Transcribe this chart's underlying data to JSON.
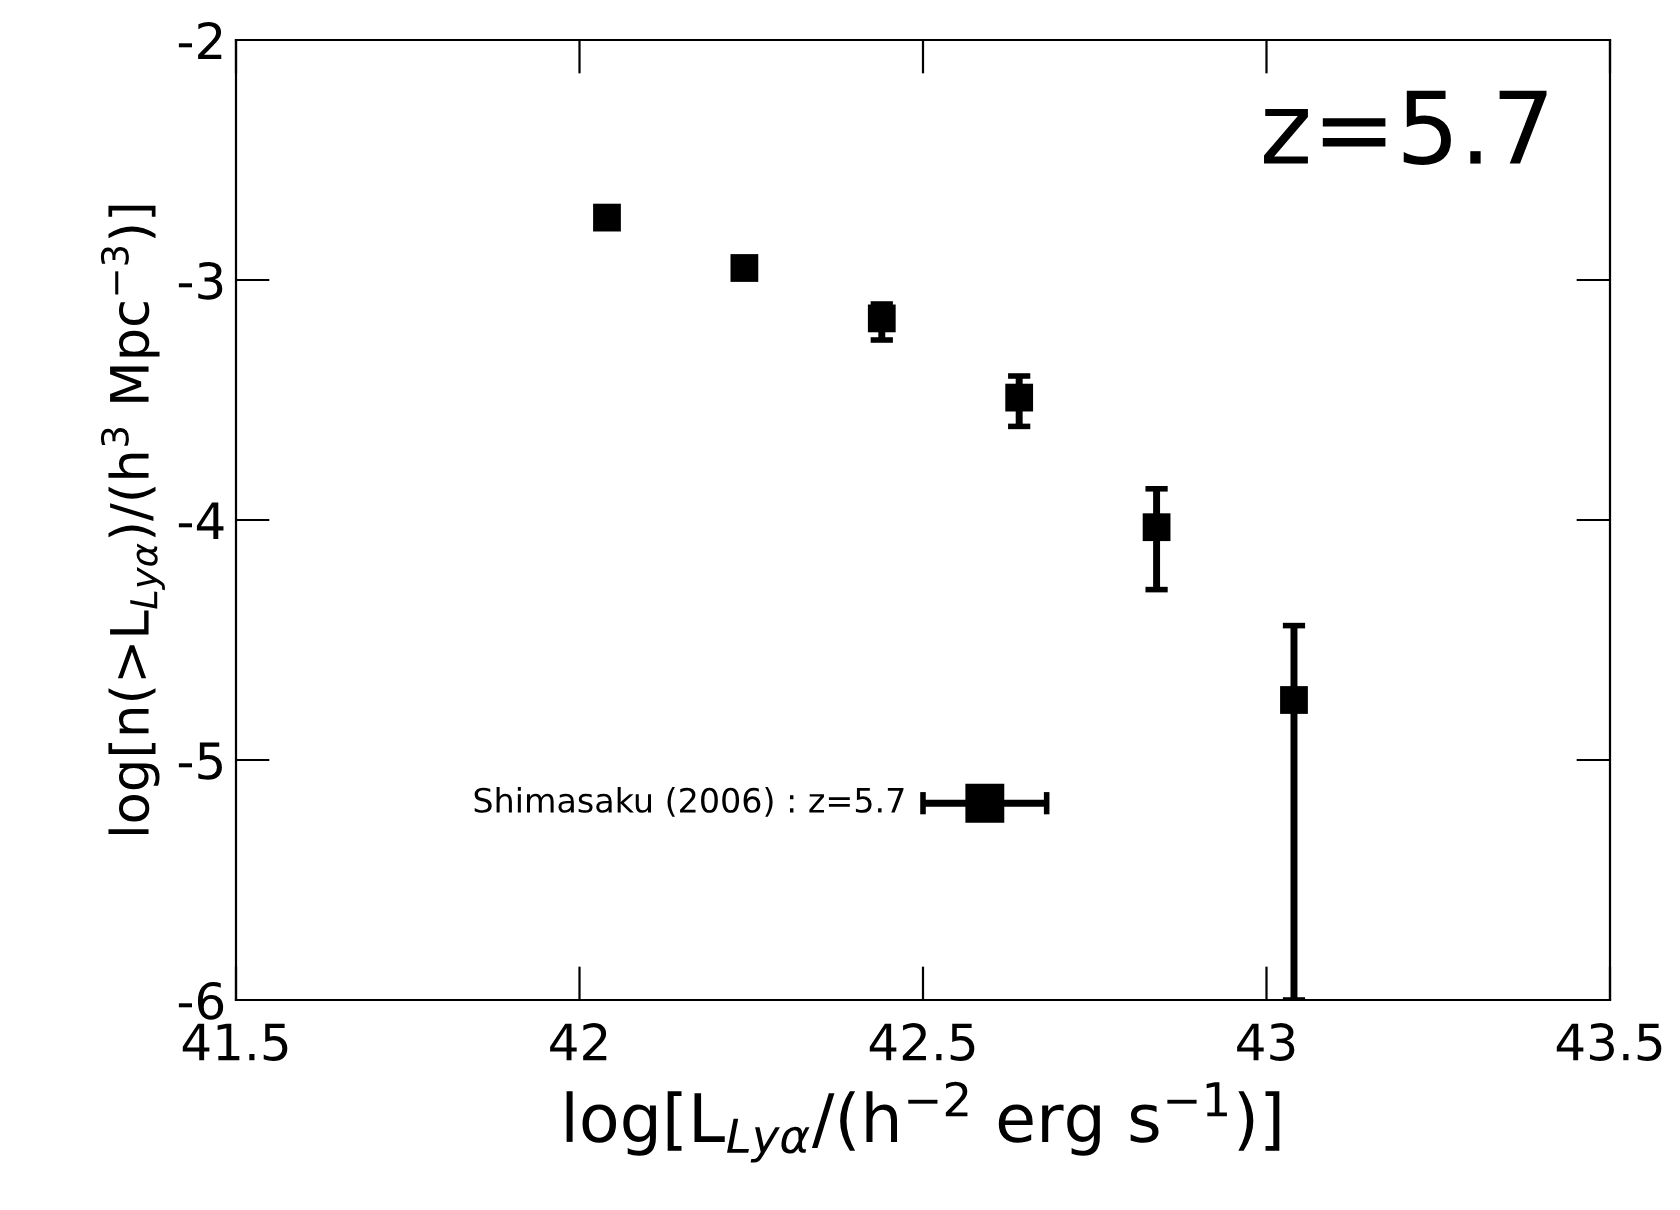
{
  "chart_data": {
    "type": "scatter",
    "xlabel": "log[L$_{Lyα}$/(h$^{−2}$ erg s$^{−1}$)]",
    "ylabel": "log[n(>L$_{Lyα}$)/(h$^{3}$ Mpc$^{−3}$)]",
    "annotations": [
      "z=5.7"
    ],
    "series": [
      {
        "color": "#000000",
        "x": [
          42.04,
          42.24,
          42.44,
          42.64,
          42.84,
          43.04
        ],
        "values": [
          -2.74,
          -2.95,
          -3.16,
          -3.49,
          -4.03,
          -4.75
        ],
        "errors": [
          null,
          null,
          [
            -3.25,
            -3.1
          ],
          [
            -3.61,
            -3.4
          ],
          [
            -4.29,
            -3.87
          ],
          [
            -6,
            -4.44
          ]
        ]
      },
      {
        "name": "Shimasaku (2006) : z=5.7",
        "color": "#000000",
        "x": [
          42.59
        ],
        "values": [
          -5.18
        ],
        "xerrors": [
          [
            42.5,
            42.68
          ]
        ]
      }
    ],
    "xlim": [
      41.5,
      43.5
    ],
    "xticks": [
      41.5,
      42,
      42.5,
      43,
      43.5
    ],
    "ylim": [
      -6,
      -2
    ],
    "yticks": [
      -6,
      -5,
      -4,
      -3,
      -2
    ],
    "marker": "square",
    "grid": false,
    "legend": "bottom left"
  }
}
